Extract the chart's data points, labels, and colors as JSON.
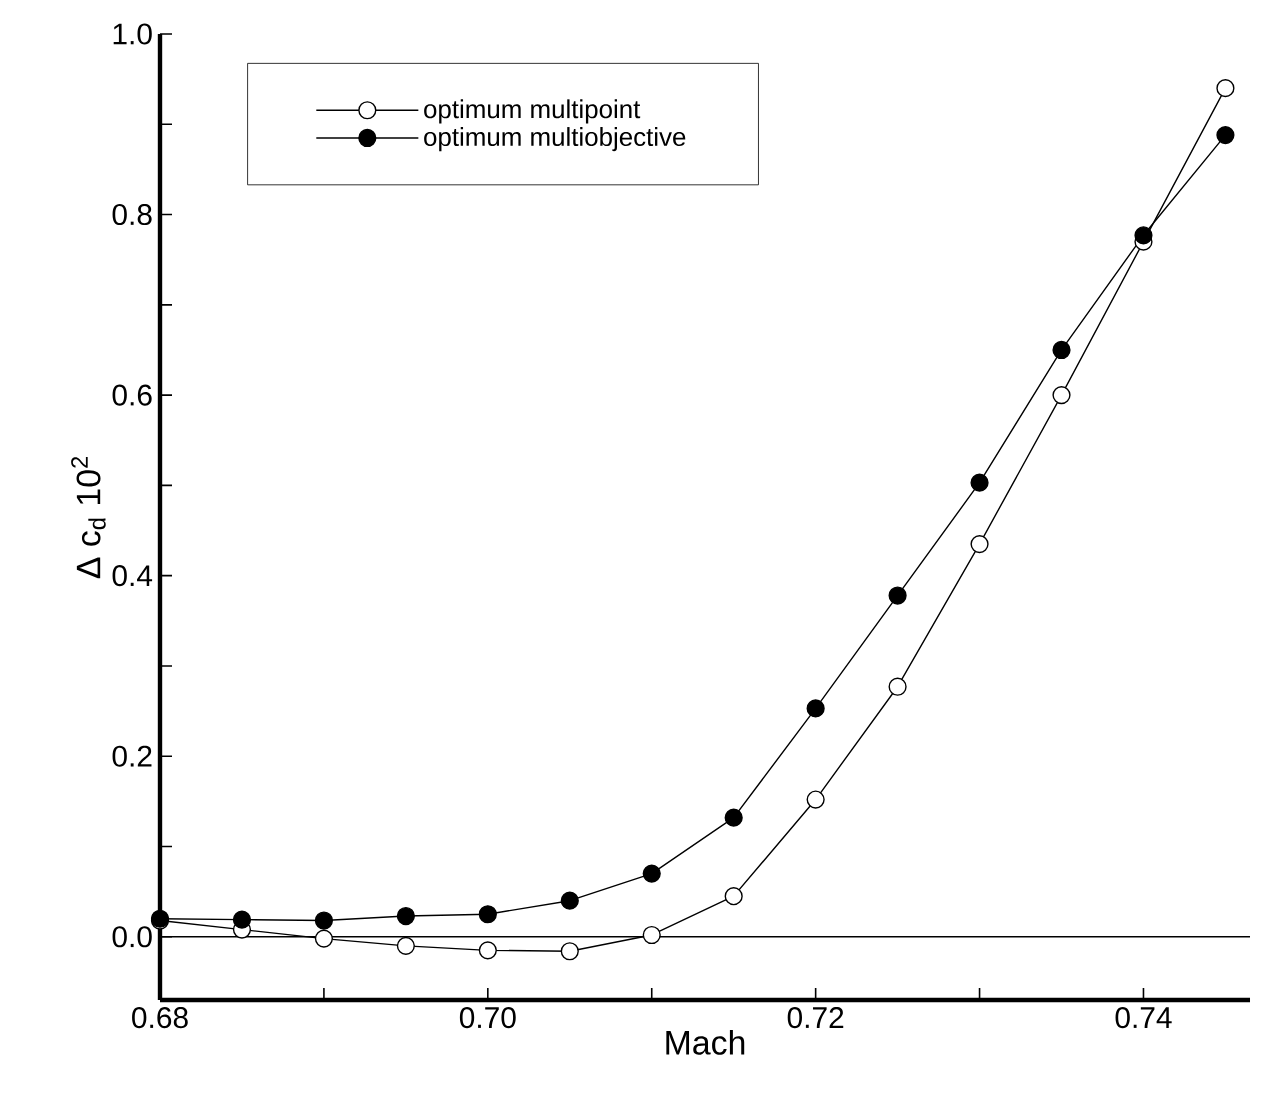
{
  "chart_data": {
    "type": "line",
    "xlabel": "Mach",
    "ylabel": "Δ c$_{d}$ 10$^{2}$",
    "x": [
      0.68,
      0.685,
      0.69,
      0.695,
      0.7,
      0.705,
      0.71,
      0.715,
      0.72,
      0.725,
      0.73,
      0.735,
      0.74,
      0.745
    ],
    "series": [
      {
        "name": "optimum multipoint",
        "color": "#000000",
        "marker": "circle",
        "values": [
          0.018,
          0.008,
          -0.002,
          -0.01,
          -0.015,
          -0.016,
          0.002,
          0.045,
          0.152,
          0.277,
          0.435,
          0.6,
          0.77,
          0.94
        ]
      },
      {
        "name": "optimum multiobjective",
        "color": "#000000",
        "marker": "circle",
        "values": [
          0.02,
          0.019,
          0.018,
          0.023,
          0.025,
          0.04,
          0.07,
          0.132,
          0.253,
          0.378,
          0.503,
          0.65,
          0.777,
          0.888
        ]
      }
    ],
    "xlim": [
      0.68,
      0.7465
    ],
    "ylim": [
      -0.07,
      1.0
    ],
    "xticks": [
      {
        "value": 0.68,
        "label": "0.68"
      },
      {
        "value": 0.69,
        "label": null
      },
      {
        "value": 0.7,
        "label": "0.70"
      },
      {
        "value": 0.71,
        "label": null
      },
      {
        "value": 0.72,
        "label": "0.72"
      },
      {
        "value": 0.73,
        "label": null
      },
      {
        "value": 0.74,
        "label": "0.74"
      }
    ],
    "yticks": [
      {
        "value": 0.0,
        "label": "0.0"
      },
      {
        "value": 0.1,
        "label": null
      },
      {
        "value": 0.2,
        "label": "0.2"
      },
      {
        "value": 0.3,
        "label": null
      },
      {
        "value": 0.4,
        "label": "0.4"
      },
      {
        "value": 0.5,
        "label": null
      },
      {
        "value": 0.6,
        "label": "0.6"
      },
      {
        "value": 0.7,
        "label": null
      },
      {
        "value": 0.8,
        "label": "0.8"
      },
      {
        "value": 0.9,
        "label": null
      },
      {
        "value": 1.0,
        "label": "1.0"
      }
    ],
    "ref_lines": [
      {
        "axis": "y",
        "value": 0,
        "color": "#000000"
      }
    ],
    "legend": "top left",
    "grid": false,
    "line_style": "solid"
  }
}
